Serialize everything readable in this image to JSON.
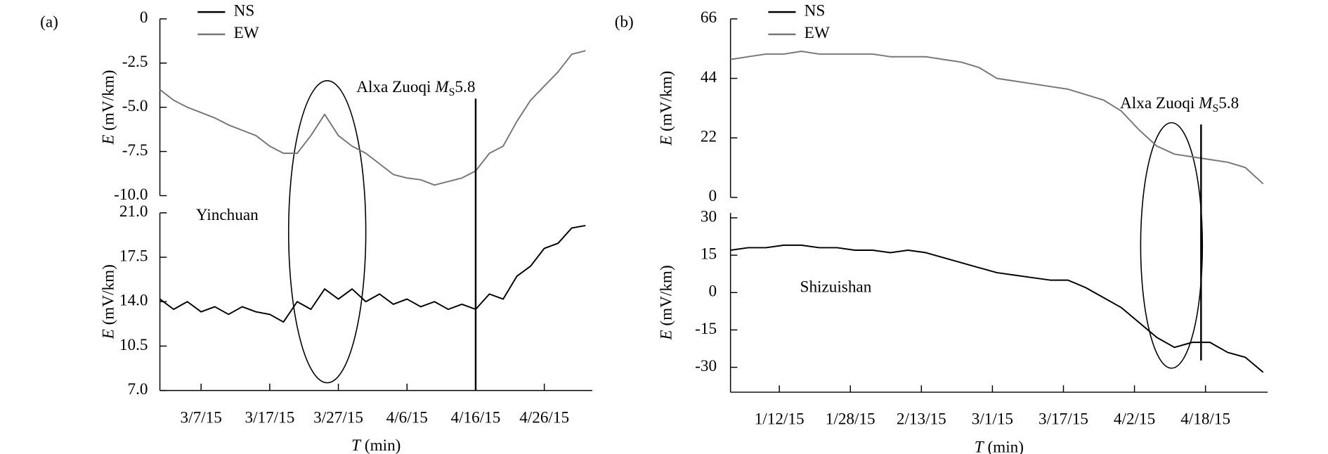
{
  "chart_data": [
    {
      "type": "line",
      "panel_label": "(a)",
      "station": "Yinchuan",
      "annotation": [
        "Alxa Zuoqi ",
        "M",
        "S",
        "5.8"
      ],
      "event_x": "4/16/15",
      "xlabel": [
        "T",
        " (min)"
      ],
      "xlim": [
        "3/1/15",
        "5/3/15"
      ],
      "xticks": [
        "3/7/15",
        "3/17/15",
        "3/27/15",
        "4/6/15",
        "4/16/15",
        "4/26/15"
      ],
      "x": [
        "3/1/15",
        "3/3/15",
        "3/5/15",
        "3/7/15",
        "3/9/15",
        "3/11/15",
        "3/13/15",
        "3/15/15",
        "3/17/15",
        "3/19/15",
        "3/21/15",
        "3/23/15",
        "3/25/15",
        "3/27/15",
        "3/29/15",
        "3/31/15",
        "4/2/15",
        "4/4/15",
        "4/6/15",
        "4/8/15",
        "4/10/15",
        "4/12/15",
        "4/14/15",
        "4/16/15",
        "4/18/15",
        "4/20/15",
        "4/22/15",
        "4/24/15",
        "4/26/15",
        "4/28/15",
        "4/30/15",
        "5/2/15"
      ],
      "series": [
        {
          "name": "NS",
          "color": "#000000",
          "ylabel": [
            "E",
            " (mV/km)"
          ],
          "ylim": [
            7,
            21
          ],
          "yticks": [
            {
              "value": 7,
              "label": "7.0"
            },
            10.5,
            {
              "value": 14,
              "label": "14.0"
            },
            17.5,
            {
              "value": 21,
              "label": "21.0"
            }
          ],
          "values": [
            14.2,
            13.4,
            14.0,
            13.2,
            13.6,
            13.0,
            13.6,
            13.2,
            13.0,
            12.4,
            14.0,
            13.4,
            15.0,
            14.2,
            15.0,
            14.0,
            14.6,
            13.8,
            14.2,
            13.6,
            14.0,
            13.4,
            13.8,
            13.4,
            14.6,
            14.2,
            16.0,
            16.8,
            18.2,
            18.6,
            19.8,
            20.0
          ]
        },
        {
          "name": "EW",
          "color": "#777777",
          "ylabel": [
            "E",
            " (mV/km)"
          ],
          "ylim": [
            -10,
            0
          ],
          "yticks": [
            0,
            -2.5,
            {
              "value": -5,
              "label": "-5.0"
            },
            -7.5,
            {
              "value": -10,
              "label": "-10.0"
            }
          ],
          "values": [
            -4.0,
            -4.6,
            -5.0,
            -5.3,
            -5.6,
            -6.0,
            -6.3,
            -6.6,
            -7.2,
            -7.6,
            -7.6,
            -6.6,
            -5.4,
            -6.6,
            -7.2,
            -7.6,
            -8.2,
            -8.8,
            -9.0,
            -9.1,
            -9.4,
            -9.2,
            -9.0,
            -8.6,
            -7.6,
            -7.2,
            -5.8,
            -4.6,
            -3.8,
            -3.0,
            -2.0,
            -1.8
          ]
        }
      ]
    },
    {
      "type": "line",
      "panel_label": "(b)",
      "station": "Shizuishan",
      "annotation": [
        "Alxa Zuoqi ",
        "M",
        "S",
        "5.8"
      ],
      "event_x": "4/17/15",
      "xlabel": [
        "T",
        " (min)"
      ],
      "xlim": [
        "1/1/15",
        "5/2/15"
      ],
      "xticks": [
        "1/12/15",
        "1/28/15",
        "2/13/15",
        "3/1/15",
        "3/17/15",
        "4/2/15",
        "4/18/15"
      ],
      "x": [
        "1/1/15",
        "1/5/15",
        "1/9/15",
        "1/13/15",
        "1/17/15",
        "1/21/15",
        "1/25/15",
        "1/29/15",
        "2/2/15",
        "2/6/15",
        "2/10/15",
        "2/14/15",
        "2/18/15",
        "2/22/15",
        "2/26/15",
        "3/2/15",
        "3/6/15",
        "3/10/15",
        "3/14/15",
        "3/18/15",
        "3/22/15",
        "3/26/15",
        "3/30/15",
        "4/3/15",
        "4/7/15",
        "4/11/15",
        "4/15/15",
        "4/19/15",
        "4/23/15",
        "4/27/15",
        "5/1/15"
      ],
      "series": [
        {
          "name": "NS",
          "color": "#000000",
          "ylabel": [
            "E",
            " (mV/km)"
          ],
          "ylim": [
            -40,
            32
          ],
          "yticks": [
            30,
            15,
            0,
            -15,
            -30
          ],
          "values": [
            17,
            18,
            18,
            19,
            19,
            18,
            18,
            17,
            17,
            16,
            17,
            16,
            14,
            12,
            10,
            8,
            7,
            6,
            5,
            5,
            2,
            -2,
            -6,
            -12,
            -18,
            -22,
            -20,
            -20,
            -24,
            -26,
            -32
          ]
        },
        {
          "name": "EW",
          "color": "#777777",
          "ylabel": [
            "E",
            " (mV/km)"
          ],
          "ylim": [
            0,
            66
          ],
          "yticks": [
            66,
            44,
            22,
            0
          ],
          "values": [
            51,
            52,
            53,
            53,
            54,
            53,
            53,
            53,
            53,
            52,
            52,
            52,
            51,
            50,
            48,
            44,
            43,
            42,
            41,
            40,
            38,
            36,
            32,
            25,
            19,
            16,
            15,
            14,
            13,
            11,
            5
          ]
        }
      ]
    }
  ]
}
